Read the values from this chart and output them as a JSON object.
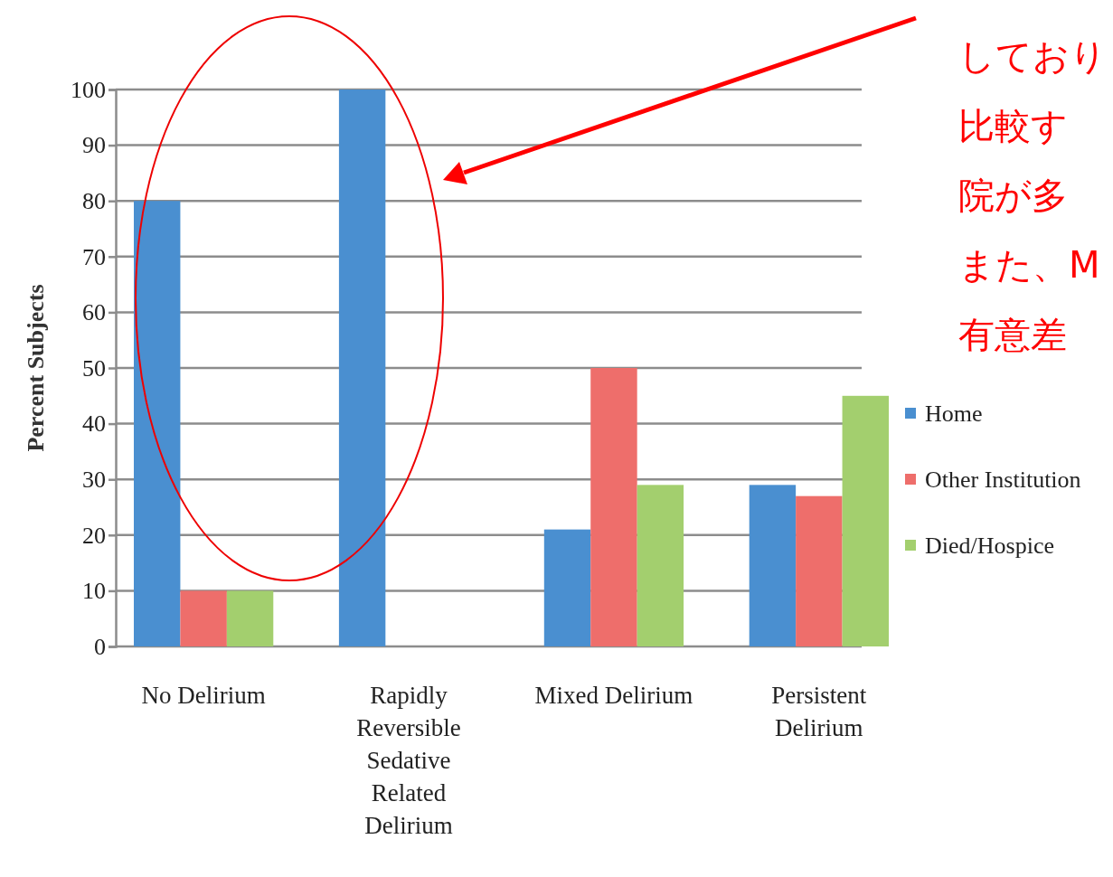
{
  "chart_data": {
    "type": "bar",
    "ylabel": "Percent Subjects",
    "categories": [
      "No Delirium",
      "Rapidly Reversible Sedative Related Delirium",
      "Mixed Delirium",
      "Persistent Delirium"
    ],
    "series": [
      {
        "name": "Home",
        "color": "#4a8fd0",
        "values": [
          80,
          100,
          21,
          29
        ]
      },
      {
        "name": "Other Institution",
        "color": "#ee6e6b",
        "values": [
          10,
          0,
          50,
          27
        ]
      },
      {
        "name": "Died/Hospice",
        "color": "#a3cf6e",
        "values": [
          10,
          0,
          29,
          45
        ]
      }
    ],
    "ylim": [
      0,
      100
    ],
    "yticks": [
      0,
      10,
      20,
      30,
      40,
      50,
      60,
      70,
      80,
      90,
      100
    ],
    "grid": "y",
    "legend": "right",
    "annotations": [
      "しており",
      "比較す",
      "院が多",
      "また、M",
      "有意差"
    ]
  }
}
